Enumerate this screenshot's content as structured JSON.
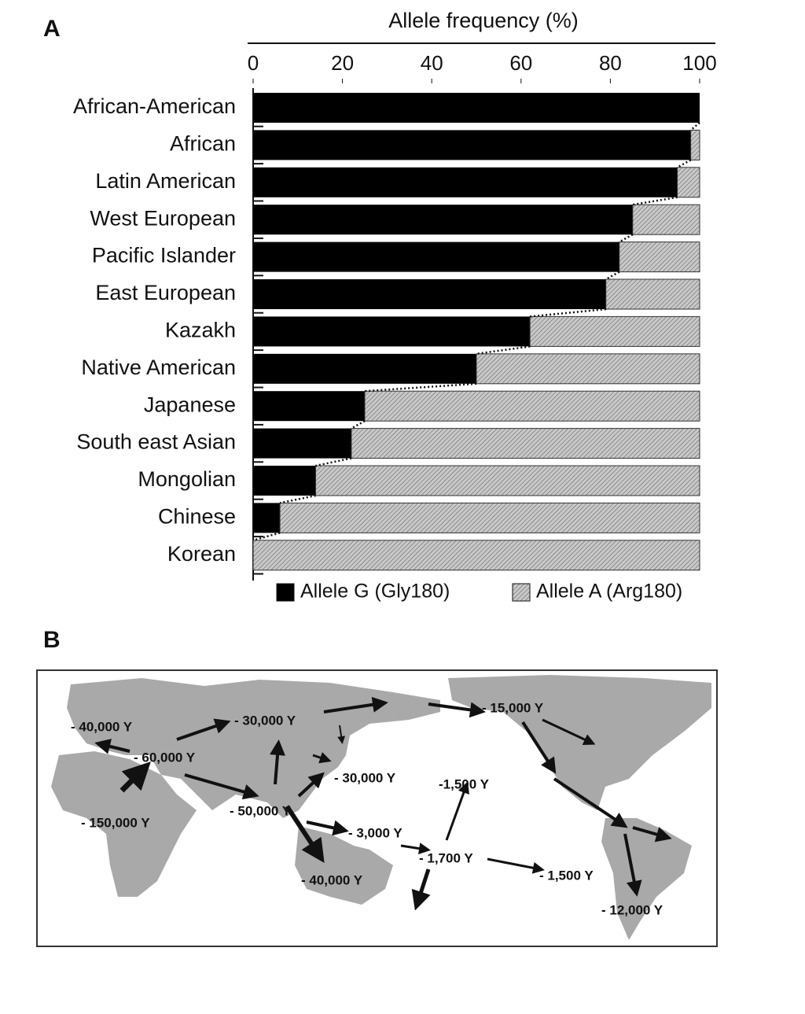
{
  "panels": {
    "a": "A",
    "b": "B"
  },
  "chart_data": {
    "type": "stacked-barh",
    "xlabel": "Allele frequency (%)",
    "categories": [
      "African-American",
      "African",
      "Latin American",
      "West European",
      "Pacific Islander",
      "East European",
      "Kazakh",
      "Native American",
      "Japanese",
      "South east Asian",
      "Mongolian",
      "Chinese",
      "Korean"
    ],
    "series": [
      {
        "name": "Allele G (Gly180)",
        "color": "#000000",
        "values": [
          100,
          98,
          95,
          85,
          82,
          79,
          62,
          50,
          25,
          22,
          14,
          6,
          0
        ]
      },
      {
        "name": "Allele A (Arg180)",
        "color": "#c8c8c8",
        "values": [
          0,
          2,
          5,
          15,
          18,
          21,
          38,
          50,
          75,
          78,
          86,
          94,
          100
        ]
      }
    ],
    "xlim": [
      0,
      100
    ],
    "xticks": [
      0,
      20,
      40,
      60,
      80,
      100
    ]
  },
  "map": {
    "labels": [
      "- 40,000 Y",
      "- 60,000 Y",
      "- 30,000 Y",
      "- 150,000 Y",
      "- 50,000 Y",
      "- 30,000 Y",
      "- 15,000 Y",
      "-1,500 Y",
      "- 3,000 Y",
      "- 1,700 Y",
      "- 40,000 Y",
      "- 1,500 Y",
      "- 12,000 Y"
    ]
  }
}
